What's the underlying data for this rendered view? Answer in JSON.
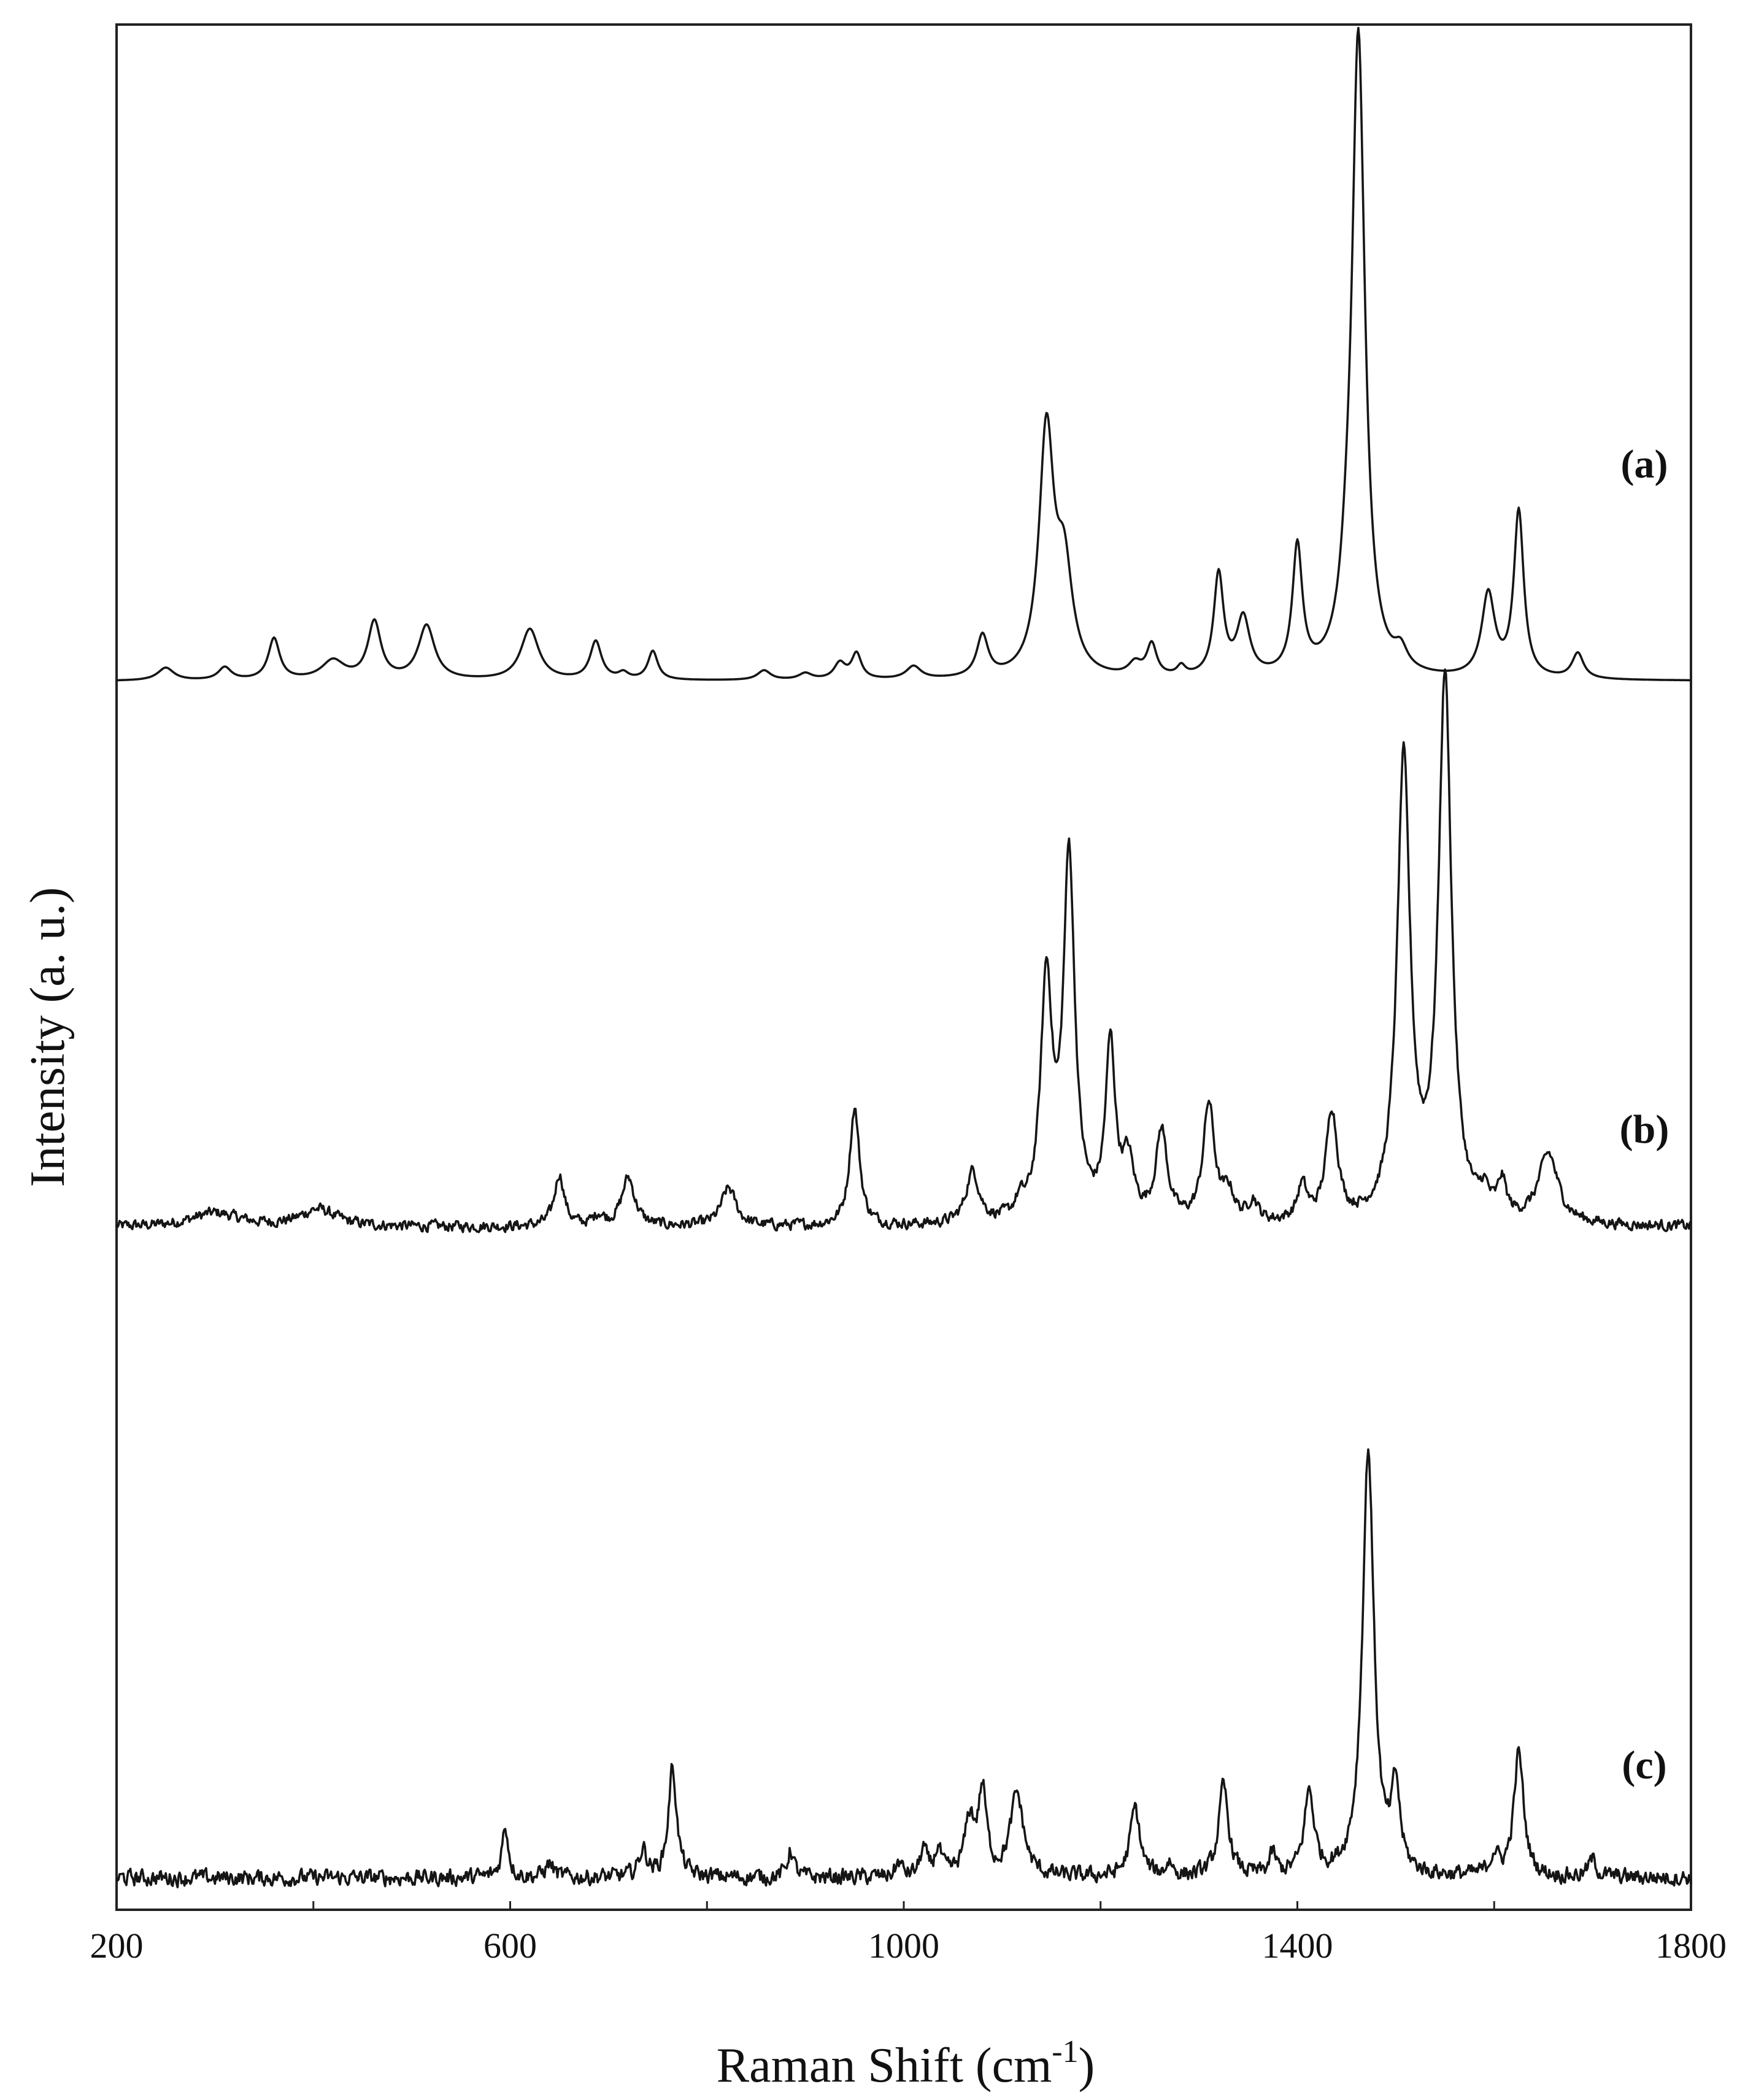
{
  "chart_data": {
    "type": "line",
    "xlabel": "Raman Shift (cm",
    "xlabel_superscript": "-1",
    "xlabel_suffix": ")",
    "ylabel": "Intensity (a. u.)",
    "xlim": [
      200,
      1800
    ],
    "x_tick_labels": [
      "200",
      "600",
      "1000",
      "1400",
      "1800"
    ],
    "x_ticks_minor": [
      400,
      800,
      1200,
      1600
    ],
    "grid": false,
    "stacked_offset": true,
    "series": [
      {
        "name": "(a)",
        "baseline": 0.0,
        "noise": 0.0,
        "peaks": [
          [
            250,
            0.02,
            10
          ],
          [
            310,
            0.02,
            8
          ],
          [
            360,
            0.065,
            7
          ],
          [
            420,
            0.03,
            14
          ],
          [
            462,
            0.09,
            8
          ],
          [
            515,
            0.085,
            10
          ],
          [
            620,
            0.08,
            11
          ],
          [
            687,
            0.06,
            7
          ],
          [
            715,
            0.01,
            6
          ],
          [
            745,
            0.045,
            6
          ],
          [
            858,
            0.015,
            8
          ],
          [
            900,
            0.01,
            8
          ],
          [
            935,
            0.025,
            7
          ],
          [
            952,
            0.04,
            6
          ],
          [
            1010,
            0.02,
            9
          ],
          [
            1080,
            0.065,
            7
          ],
          [
            1145,
            0.38,
            9
          ],
          [
            1163,
            0.16,
            10
          ],
          [
            1235,
            0.02,
            8
          ],
          [
            1252,
            0.05,
            6
          ],
          [
            1282,
            0.015,
            5
          ],
          [
            1320,
            0.16,
            6
          ],
          [
            1345,
            0.09,
            8
          ],
          [
            1400,
            0.2,
            6
          ],
          [
            1450,
            0.06,
            8
          ],
          [
            1462,
            1.0,
            8
          ],
          [
            1505,
            0.03,
            8
          ],
          [
            1594,
            0.13,
            8
          ],
          [
            1625,
            0.26,
            6
          ],
          [
            1685,
            0.04,
            7
          ]
        ]
      },
      {
        "name": "(b)",
        "baseline": 0.0,
        "noise": 0.012,
        "peaks": [
          [
            300,
            0.02,
            30
          ],
          [
            405,
            0.025,
            22
          ],
          [
            650,
            0.075,
            6
          ],
          [
            690,
            0.015,
            6
          ],
          [
            720,
            0.07,
            8
          ],
          [
            822,
            0.055,
            9
          ],
          [
            950,
            0.17,
            6
          ],
          [
            1070,
            0.075,
            8
          ],
          [
            1118,
            0.02,
            6
          ],
          [
            1145,
            0.34,
            7
          ],
          [
            1168,
            0.52,
            7
          ],
          [
            1210,
            0.25,
            6
          ],
          [
            1228,
            0.08,
            7
          ],
          [
            1262,
            0.13,
            7
          ],
          [
            1310,
            0.17,
            7
          ],
          [
            1330,
            0.04,
            7
          ],
          [
            1355,
            0.03,
            6
          ],
          [
            1405,
            0.05,
            6
          ],
          [
            1435,
            0.16,
            7
          ],
          [
            1508,
            0.66,
            8
          ],
          [
            1550,
            0.78,
            8
          ],
          [
            1590,
            0.03,
            6
          ],
          [
            1608,
            0.05,
            5
          ],
          [
            1655,
            0.1,
            12
          ]
        ]
      },
      {
        "name": "(c)",
        "baseline": 0.0,
        "noise": 0.018,
        "peaks": [
          [
            595,
            0.075,
            4
          ],
          [
            640,
            0.02,
            5
          ],
          [
            735,
            0.04,
            5
          ],
          [
            765,
            0.16,
            5
          ],
          [
            885,
            0.04,
            4
          ],
          [
            995,
            0.02,
            4
          ],
          [
            1020,
            0.04,
            4
          ],
          [
            1035,
            0.04,
            4
          ],
          [
            1067,
            0.08,
            6
          ],
          [
            1080,
            0.12,
            5
          ],
          [
            1115,
            0.12,
            8
          ],
          [
            1235,
            0.1,
            6
          ],
          [
            1270,
            0.02,
            4
          ],
          [
            1325,
            0.13,
            6
          ],
          [
            1375,
            0.03,
            4
          ],
          [
            1412,
            0.12,
            6
          ],
          [
            1472,
            0.62,
            7
          ],
          [
            1500,
            0.12,
            5
          ],
          [
            1600,
            0.03,
            5
          ],
          [
            1625,
            0.18,
            6
          ],
          [
            1700,
            0.025,
            5
          ]
        ]
      }
    ]
  }
}
